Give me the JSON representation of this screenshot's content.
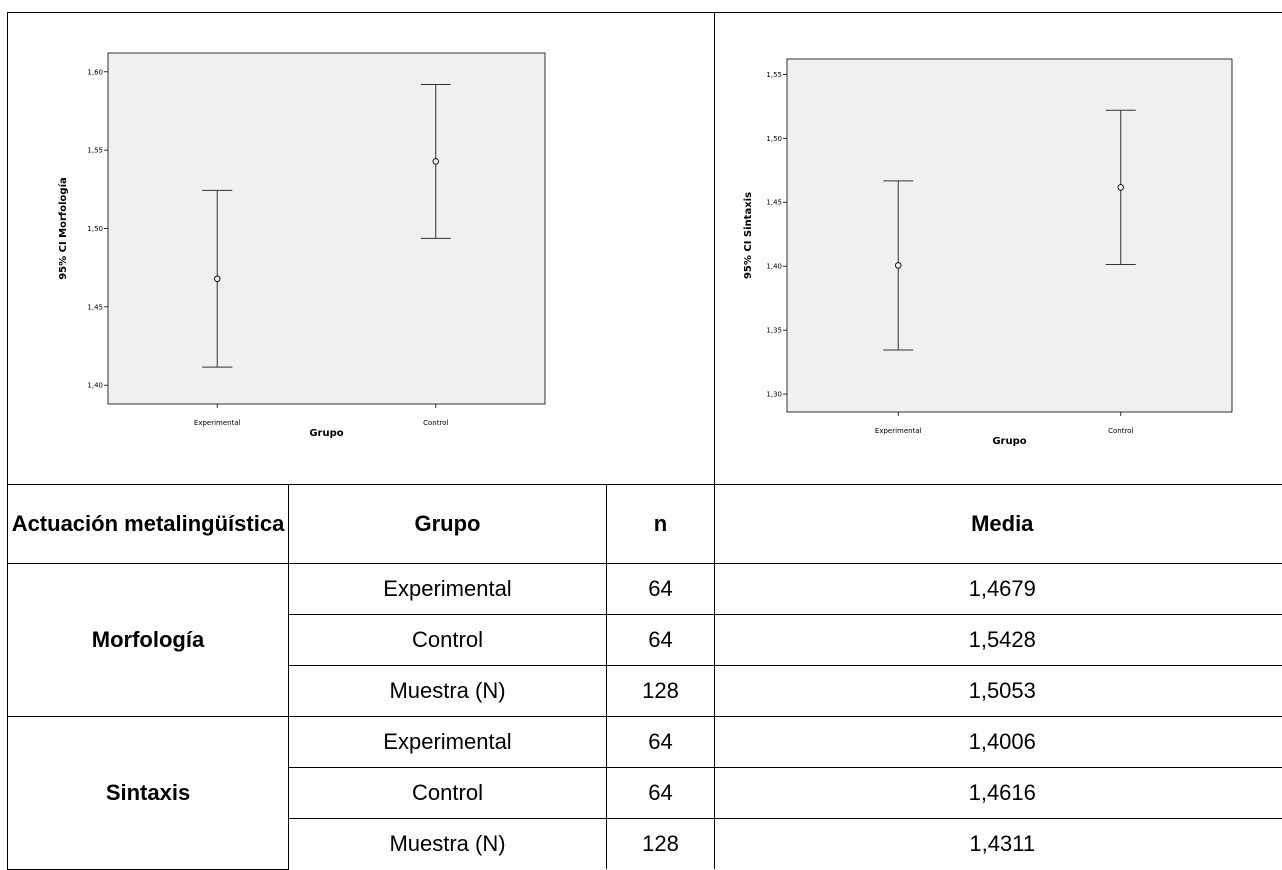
{
  "chart_data": [
    {
      "type": "errorbar",
      "ylabel": "95% CI Morfología",
      "xlabel": "Grupo",
      "categories": [
        "Experimental",
        "Control"
      ],
      "means": [
        1.4679,
        1.5428
      ],
      "lower": [
        1.4115,
        1.4937
      ],
      "upper": [
        1.5243,
        1.5919
      ],
      "ylim": [
        1.388,
        1.612
      ],
      "yticks": [
        1.4,
        1.45,
        1.5,
        1.55,
        1.6
      ],
      "ytick_labels": [
        "1,40",
        "1,45",
        "1,50",
        "1,55",
        "1,60"
      ],
      "background": "#f0f0f0",
      "grid": false
    },
    {
      "type": "errorbar",
      "ylabel": "95% CI Sintaxis",
      "xlabel": "Grupo",
      "categories": [
        "Experimental",
        "Control"
      ],
      "means": [
        1.4006,
        1.4616
      ],
      "lower": [
        1.3345,
        1.4013
      ],
      "upper": [
        1.4667,
        1.5219
      ],
      "ylim": [
        1.286,
        1.562
      ],
      "yticks": [
        1.3,
        1.35,
        1.4,
        1.45,
        1.5,
        1.55
      ],
      "ytick_labels": [
        "1,30",
        "1,35",
        "1,40",
        "1,45",
        "1,50",
        "1,55"
      ],
      "background": "#f0f0f0",
      "grid": false
    }
  ],
  "table": {
    "headers": [
      "Actuación metalingüística",
      "Grupo",
      "n",
      "Media"
    ],
    "groups": [
      {
        "name": "Morfología",
        "rows": [
          {
            "grupo": "Experimental",
            "n": "64",
            "media": "1,4679"
          },
          {
            "grupo": "Control",
            "n": "64",
            "media": "1,5428"
          },
          {
            "grupo": "Muestra (N)",
            "n": "128",
            "media": "1,5053"
          }
        ]
      },
      {
        "name": "Sintaxis",
        "rows": [
          {
            "grupo": "Experimental",
            "n": "64",
            "media": "1,4006"
          },
          {
            "grupo": "Control",
            "n": "64",
            "media": "1,4616"
          },
          {
            "grupo": "Muestra (N)",
            "n": "128",
            "media": "1,4311"
          }
        ]
      }
    ]
  }
}
